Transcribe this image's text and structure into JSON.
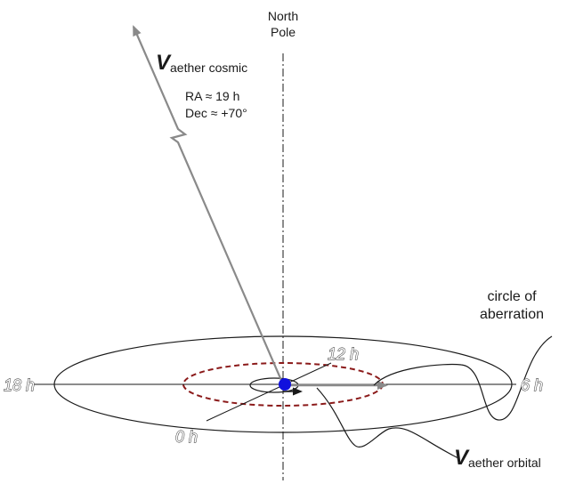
{
  "labels": {
    "north_pole_line1": "North",
    "north_pole_line2": "Pole",
    "v_symbol": "V",
    "cosmic_subscript": "aether cosmic",
    "ra": "RA ≈ 19 h",
    "dec": "Dec ≈ +70°",
    "circle_line1": "circle of",
    "circle_line2": "aberration",
    "orbital_subscript": "aether orbital"
  },
  "hours": {
    "h18": "18 h",
    "h6": "6 h",
    "h12": "12 h",
    "h0": "0 h"
  },
  "colors": {
    "earth": "#1010dd",
    "aberration_circle": "#8b1a1a",
    "vector": "#8a8a8a",
    "line": "#1a1a1a"
  }
}
